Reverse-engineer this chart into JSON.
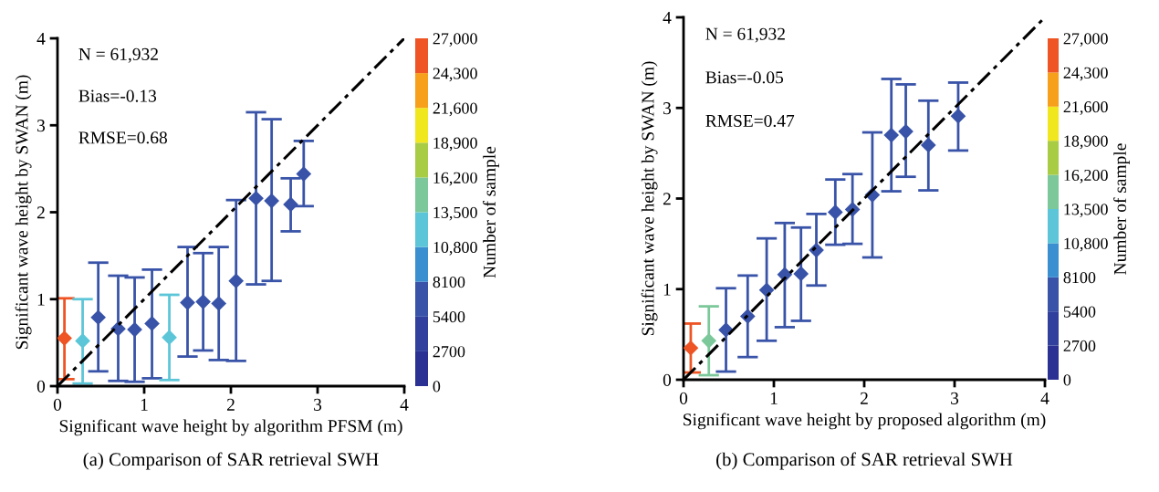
{
  "chart_data": [
    {
      "type": "scatter",
      "xlabel": "Significant wave height by algorithm PFSM (m)",
      "ylabel": "Significant wave height by SWAN (m)",
      "clabel": "Number of sample",
      "annotations": [
        "N = 61,932",
        "Bias=-0.13",
        "RMSE=0.68",
        "(a) Comparison of SAR retrieval SWH"
      ],
      "xlim": [
        0,
        4
      ],
      "ylim": [
        0,
        4
      ],
      "xticks": [
        0,
        1,
        2,
        3,
        4
      ],
      "yticks": [
        0,
        1,
        2,
        3,
        4
      ],
      "clim": [
        0,
        27000
      ],
      "cticks": [
        0,
        2700,
        5400,
        8100,
        {
          "value": 10800,
          "label": "10,800"
        },
        {
          "value": 13500,
          "label": "13,500"
        },
        {
          "value": 16200,
          "label": "16,200"
        },
        {
          "value": 18900,
          "label": "18,900"
        },
        {
          "value": 21600,
          "label": "21,600"
        },
        {
          "value": 24300,
          "label": "24,300"
        },
        {
          "value": 27000,
          "label": "27,000"
        }
      ],
      "grid": false,
      "series": [
        {
          "marker": "diamond",
          "x": [
            0.08,
            0.29,
            0.47,
            0.7,
            0.89,
            1.09,
            1.29,
            1.5,
            1.68,
            1.86,
            2.06,
            2.29,
            2.47,
            2.69,
            2.84
          ],
          "values": [
            0.55,
            0.52,
            0.79,
            0.66,
            0.65,
            0.72,
            0.56,
            0.96,
            0.97,
            0.95,
            1.21,
            2.16,
            2.13,
            2.09,
            2.44
          ],
          "errors": [
            [
              0.08,
              1.01
            ],
            [
              0.03,
              1.0
            ],
            [
              0.17,
              1.42
            ],
            [
              0.06,
              1.27
            ],
            [
              0.05,
              1.25
            ],
            [
              0.09,
              1.34
            ],
            [
              0.07,
              1.05
            ],
            [
              0.34,
              1.6
            ],
            [
              0.41,
              1.53
            ],
            [
              0.3,
              1.6
            ],
            [
              0.29,
              2.14
            ],
            [
              1.17,
              3.15
            ],
            [
              1.21,
              3.07
            ],
            [
              1.78,
              2.39
            ],
            [
              2.07,
              2.82
            ]
          ],
          "cvalues": [
            25650,
            12150,
            6750,
            6750,
            6750,
            6750,
            12150,
            6750,
            6750,
            6750,
            6750,
            6750,
            6750,
            6750,
            6750
          ],
          "colors": [
            "#ee5424",
            "#5cc6d8",
            "#3853a8",
            "#3853a8",
            "#3853a8",
            "#3853a8",
            "#5cc6d8",
            "#3853a8",
            "#3853a8",
            "#3853a8",
            "#3853a8",
            "#3853a8",
            "#3853a8",
            "#3853a8",
            "#3853a8"
          ]
        },
        {
          "type": "line",
          "x": [
            0,
            4
          ],
          "values": [
            0,
            4
          ],
          "color": "#000000",
          "line_style": "dashed"
        }
      ]
    },
    {
      "type": "scatter",
      "xlabel": "Significant wave height by proposed algorithm (m)",
      "ylabel": "Significant wave height by SWAN (m)",
      "clabel": "Number of sample",
      "annotations": [
        "N = 61,932",
        "Bias=-0.05",
        "RMSE=0.47",
        "(b) Comparison of SAR retrieval SWH"
      ],
      "xlim": [
        0,
        4
      ],
      "ylim": [
        0,
        4
      ],
      "xticks": [
        0,
        1,
        2,
        3,
        4
      ],
      "yticks": [
        0,
        1,
        2,
        3,
        4
      ],
      "clim": [
        0,
        27000
      ],
      "cticks": [
        0,
        2700,
        5400,
        8100,
        {
          "value": 10800,
          "label": "10,800"
        },
        {
          "value": 13500,
          "label": "13,500"
        },
        {
          "value": 16200,
          "label": "16,200"
        },
        {
          "value": 18900,
          "label": "18,900"
        },
        {
          "value": 21600,
          "label": "21,600"
        },
        {
          "value": 24300,
          "label": "24,300"
        },
        {
          "value": 27000,
          "label": "27,000"
        }
      ],
      "grid": false,
      "series": [
        {
          "marker": "diamond",
          "x": [
            0.08,
            0.28,
            0.47,
            0.71,
            0.92,
            1.12,
            1.3,
            1.47,
            1.68,
            1.87,
            2.09,
            2.3,
            2.46,
            2.71,
            3.04
          ],
          "values": [
            0.35,
            0.43,
            0.55,
            0.7,
            0.99,
            1.16,
            1.17,
            1.43,
            1.85,
            1.88,
            2.04,
            2.7,
            2.74,
            2.59,
            2.91
          ],
          "errors": [
            [
              0.08,
              0.62
            ],
            [
              0.05,
              0.81
            ],
            [
              0.09,
              1.01
            ],
            [
              0.25,
              1.15
            ],
            [
              0.43,
              1.56
            ],
            [
              0.58,
              1.73
            ],
            [
              0.65,
              1.68
            ],
            [
              1.04,
              1.83
            ],
            [
              1.49,
              2.21
            ],
            [
              1.5,
              2.27
            ],
            [
              1.35,
              2.73
            ],
            [
              2.08,
              3.32
            ],
            [
              2.24,
              3.26
            ],
            [
              2.09,
              3.08
            ],
            [
              2.53,
              3.28
            ]
          ],
          "cvalues": [
            25650,
            14850,
            6750,
            6750,
            6750,
            6750,
            6750,
            6750,
            6750,
            6750,
            6750,
            6750,
            6750,
            6750,
            6750
          ],
          "colors": [
            "#ee5424",
            "#7cc89a",
            "#3853a8",
            "#3853a8",
            "#3853a8",
            "#3853a8",
            "#3853a8",
            "#3853a8",
            "#3853a8",
            "#3853a8",
            "#3853a8",
            "#3853a8",
            "#3853a8",
            "#3853a8",
            "#3853a8"
          ]
        },
        {
          "type": "line",
          "x": [
            0,
            4
          ],
          "values": [
            0,
            4
          ],
          "color": "#000000",
          "line_style": "dashed"
        }
      ]
    }
  ]
}
